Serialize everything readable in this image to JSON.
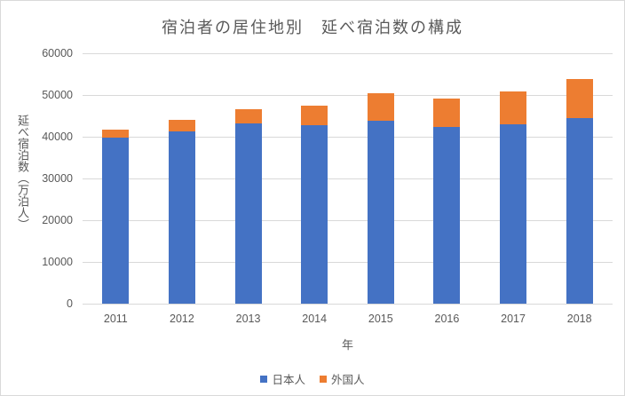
{
  "chart_data": {
    "type": "bar",
    "stacked": true,
    "title": "宿泊者の居住地別　延べ宿泊数の構成",
    "xlabel": "年",
    "ylabel": "延べ宿泊数（万泊人）",
    "categories": [
      "2011",
      "2012",
      "2013",
      "2014",
      "2015",
      "2016",
      "2017",
      "2018"
    ],
    "series": [
      {
        "name": "日本人",
        "id": "japanese",
        "color": "#4472C4",
        "values": [
          39882,
          41319,
          43240,
          42868,
          43847,
          42310,
          42991,
          44372
        ]
      },
      {
        "name": "外国人",
        "id": "foreigner",
        "color": "#ED7D31",
        "values": [
          1842,
          2631,
          3350,
          4482,
          6561,
          6939,
          7969,
          9428
        ]
      }
    ],
    "ylim": [
      0,
      60000
    ],
    "yticks": [
      0,
      10000,
      20000,
      30000,
      40000,
      50000,
      60000
    ],
    "grid": true,
    "legend_position": "bottom",
    "colors": {
      "text": "#595959",
      "gridline": "#D9D9D9",
      "background": "#FFFFFF"
    }
  }
}
